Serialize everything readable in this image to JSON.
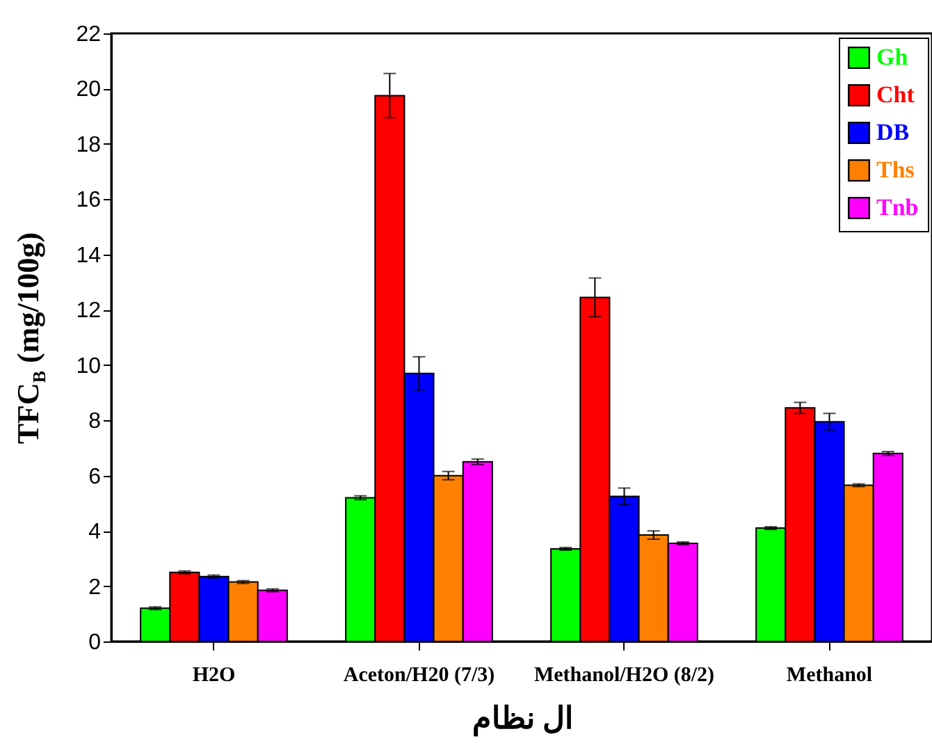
{
  "chart_data": {
    "type": "bar",
    "xlabel": "ال نظام",
    "ylabel": "TFC$_{B}$ (mg/100g)",
    "categories": [
      "H2O",
      "Aceton/H20 (7/3)",
      "Methanol/H2O (8/2)",
      "Methanol"
    ],
    "series": [
      {
        "name": "Gh",
        "color": "#00ff00",
        "values": [
          1.2,
          5.2,
          3.35,
          4.1
        ],
        "errors": [
          0.05,
          0.07,
          0.05,
          0.05
        ]
      },
      {
        "name": "Cht",
        "color": "#ff0000",
        "values": [
          2.5,
          19.75,
          12.45,
          8.45
        ],
        "errors": [
          0.05,
          0.8,
          0.7,
          0.2
        ]
      },
      {
        "name": "DB",
        "color": "#0000ff",
        "values": [
          2.35,
          9.7,
          5.25,
          7.95
        ],
        "errors": [
          0.05,
          0.6,
          0.3,
          0.3
        ]
      },
      {
        "name": "Ths",
        "color": "#ff8000",
        "values": [
          2.15,
          6.0,
          3.85,
          5.65
        ],
        "errors": [
          0.05,
          0.15,
          0.15,
          0.05
        ]
      },
      {
        "name": "Tnb",
        "color": "#ff00ff",
        "values": [
          1.85,
          6.5,
          3.55,
          6.8
        ],
        "errors": [
          0.05,
          0.1,
          0.05,
          0.07
        ]
      }
    ],
    "ylim": [
      0,
      22
    ],
    "yticks": [
      0,
      2,
      4,
      6,
      8,
      10,
      12,
      14,
      16,
      18,
      20,
      22
    ],
    "grid": false,
    "legend": "top right"
  }
}
